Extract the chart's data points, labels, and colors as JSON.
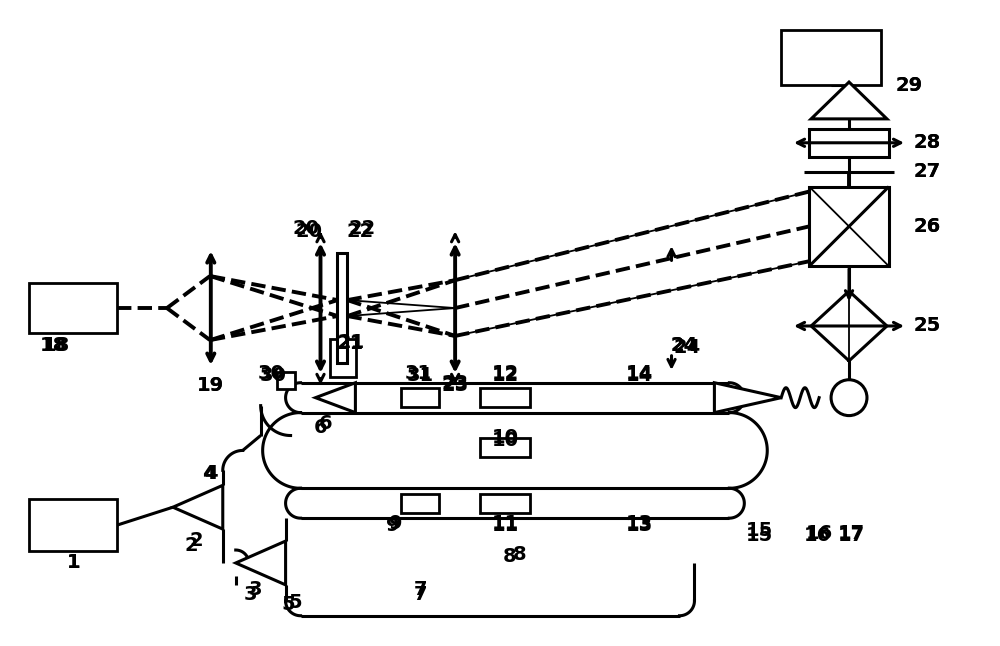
{
  "bg": "#ffffff",
  "lc": "#000000",
  "lw": 2.2,
  "lwt": 1.3,
  "lwd": 2.8,
  "fs": 14,
  "fig_w": 10.0,
  "fig_h": 6.46,
  "dpi": 100
}
